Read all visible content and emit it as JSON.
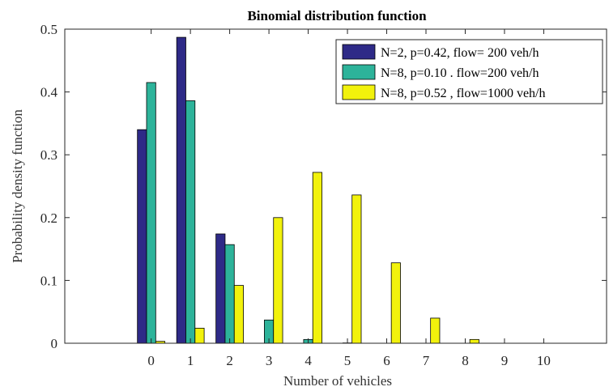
{
  "chart_data": {
    "type": "bar",
    "title": "Binomial distribution function",
    "xlabel": "Number of vehicles",
    "ylabel": "Probability density function",
    "categories": [
      "0",
      "1",
      "2",
      "3",
      "4",
      "5",
      "6",
      "7",
      "8",
      "9",
      "10"
    ],
    "x_range": [
      -2.2,
      11.6
    ],
    "ylim": [
      0,
      0.5
    ],
    "y_ticks": [
      "0",
      "0.1",
      "0.2",
      "0.3",
      "0.4",
      "0.5"
    ],
    "grid": false,
    "legend_position": "top-right",
    "series": [
      {
        "name": "N=2, p=0.42, flow= 200 veh/h",
        "color": "#2e2a87",
        "values": [
          0.34,
          0.487,
          0.174,
          0,
          0,
          0,
          0,
          0,
          0,
          0,
          0
        ]
      },
      {
        "name": "N=8, p=0.10 . flow=200 veh/h",
        "color": "#2db39a",
        "values": [
          0.415,
          0.386,
          0.157,
          0.037,
          0.006,
          0.0005,
          0,
          0,
          0,
          0,
          0
        ]
      },
      {
        "name": "N=8, p=0.52 , flow=1000 veh/h",
        "color": "#f2f20c",
        "values": [
          0.003,
          0.024,
          0.092,
          0.2,
          0.272,
          0.236,
          0.128,
          0.04,
          0.006,
          0,
          0
        ]
      }
    ]
  }
}
